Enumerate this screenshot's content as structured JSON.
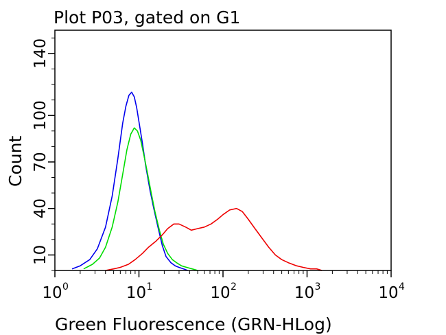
{
  "chart_data": {
    "type": "line",
    "title": "Plot P03, gated on G1",
    "xlabel": "Green Fluorescence (GRN-HLog)",
    "ylabel": "Count",
    "x_scale": "log",
    "xlim": [
      1,
      10000
    ],
    "ylim": [
      0,
      155
    ],
    "x_ticks": [
      {
        "base": "10",
        "exp": "0",
        "value": 1
      },
      {
        "base": "10",
        "exp": "1",
        "value": 10
      },
      {
        "base": "10",
        "exp": "2",
        "value": 100
      },
      {
        "base": "10",
        "exp": "3",
        "value": 1000
      },
      {
        "base": "10",
        "exp": "4",
        "value": 10000
      }
    ],
    "y_ticks": [
      {
        "label": "10",
        "value": 10
      },
      {
        "label": "40",
        "value": 40
      },
      {
        "label": "70",
        "value": 70
      },
      {
        "label": "100",
        "value": 100
      },
      {
        "label": "140",
        "value": 140
      }
    ],
    "grid": false,
    "legend": "none",
    "series": [
      {
        "color": "#0000ee",
        "x": [
          1.6,
          2.0,
          2.6,
          3.2,
          4.0,
          4.8,
          5.6,
          6.4,
          7.0,
          7.6,
          8.2,
          8.8,
          9.4,
          10.0,
          11.0,
          12.0,
          13.5,
          15.0,
          17.0,
          19.0,
          21.0,
          24.0,
          27.0,
          30.0,
          34.0,
          38.0
        ],
        "y": [
          1,
          3,
          7,
          14,
          28,
          48,
          72,
          95,
          106,
          113,
          115,
          112,
          105,
          96,
          82,
          68,
          52,
          40,
          27,
          16,
          9,
          5,
          3,
          2,
          1,
          0
        ]
      },
      {
        "color": "#00dd00",
        "x": [
          2.2,
          2.8,
          3.4,
          4.0,
          4.8,
          5.6,
          6.4,
          7.2,
          8.0,
          8.8,
          9.6,
          10.5,
          11.5,
          12.5,
          14.0,
          15.5,
          17.5,
          19.5,
          22.0,
          25.0,
          28.0,
          32.0,
          37.0,
          43.0,
          50.0
        ],
        "y": [
          1,
          4,
          8,
          15,
          28,
          44,
          62,
          78,
          88,
          92,
          90,
          84,
          74,
          64,
          50,
          38,
          26,
          17,
          11,
          7,
          5,
          3,
          2,
          1,
          0
        ]
      },
      {
        "color": "#ee0000",
        "x": [
          4.0,
          5.0,
          6.0,
          7.5,
          9.0,
          11.0,
          13.0,
          16.0,
          19.0,
          22.0,
          26.0,
          30.0,
          36.0,
          42.0,
          50.0,
          60.0,
          72.0,
          86.0,
          100.0,
          120.0,
          145.0,
          170.0,
          200.0,
          240.0,
          290.0,
          350.0,
          420.0,
          500.0,
          600.0,
          750.0,
          900.0,
          1100.0,
          1300.0,
          1500.0
        ],
        "y": [
          0,
          1,
          2,
          4,
          7,
          11,
          15,
          19,
          23,
          27,
          30,
          30,
          28,
          26,
          27,
          28,
          30,
          33,
          36,
          39,
          40,
          38,
          33,
          27,
          21,
          15,
          10,
          7,
          5,
          3,
          2,
          1,
          1,
          0
        ]
      }
    ]
  }
}
